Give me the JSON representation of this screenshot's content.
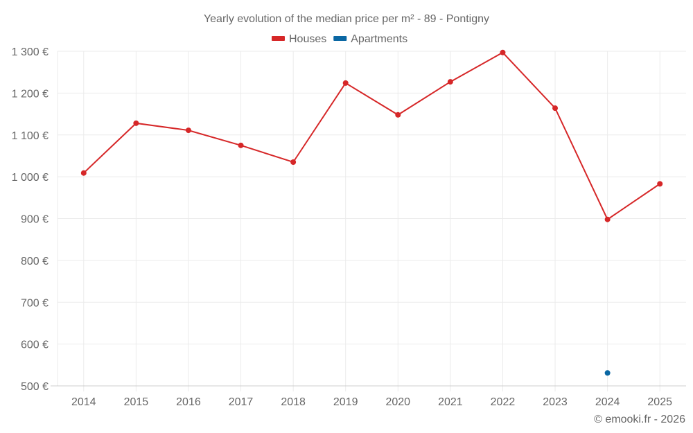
{
  "chart_data": {
    "type": "line",
    "title": "Yearly evolution of the median price per m² - 89 - Pontigny",
    "xlabel": "",
    "ylabel": "",
    "categories": [
      "2014",
      "2015",
      "2016",
      "2017",
      "2018",
      "2019",
      "2020",
      "2021",
      "2022",
      "2023",
      "2024",
      "2025"
    ],
    "ylim": [
      500,
      1300
    ],
    "yticks": [
      500,
      600,
      700,
      800,
      900,
      1000,
      1100,
      1200,
      1300
    ],
    "ytick_labels": [
      "500 €",
      "600 €",
      "700 €",
      "800 €",
      "900 €",
      "1 000 €",
      "1 100 €",
      "1 200 €",
      "1 300 €"
    ],
    "grid": true,
    "legend_position": "top-center",
    "series": [
      {
        "name": "Houses",
        "color": "#d62728",
        "values": [
          1009,
          1128,
          1111,
          1075,
          1035,
          1224,
          1148,
          1227,
          1297,
          1164,
          898,
          983
        ]
      },
      {
        "name": "Apartments",
        "color": "#0a67a3",
        "values": [
          null,
          null,
          null,
          null,
          null,
          null,
          null,
          null,
          null,
          null,
          531,
          null
        ]
      }
    ],
    "credit": "© emooki.fr - 2026"
  }
}
